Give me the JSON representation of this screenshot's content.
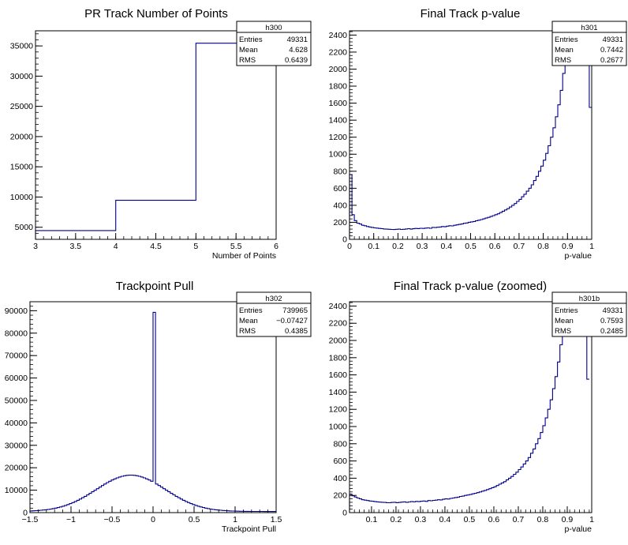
{
  "chart_data": [
    {
      "type": "histogram",
      "title": "PR Track Number of Points",
      "xlabel": "Number of Points",
      "ylabel": "",
      "xlim": [
        3,
        6
      ],
      "ylim": [
        3000,
        37500
      ],
      "xticks": [
        3,
        3.5,
        4,
        4.5,
        5,
        5.5,
        6
      ],
      "xtick_labels": [
        "3",
        "3.5",
        "4",
        "4.5",
        "5",
        "5.5",
        "6"
      ],
      "yticks": [
        5000,
        10000,
        15000,
        20000,
        25000,
        30000,
        35000
      ],
      "ytick_labels": [
        "5000",
        "10000",
        "15000",
        "20000",
        "25000",
        "30000",
        "35000"
      ],
      "bins": [
        {
          "x0": 3,
          "x1": 4,
          "y": 4450
        },
        {
          "x0": 4,
          "x1": 5,
          "y": 9450
        },
        {
          "x0": 5,
          "x1": 6,
          "y": 35450
        }
      ],
      "stats": {
        "name": "h300",
        "entries": "49331",
        "mean": "4.628",
        "rms": "0.6439"
      }
    },
    {
      "type": "histogram",
      "title": "Final Track p-value",
      "xlabel": "p-value",
      "ylabel": "",
      "xlim": [
        0,
        1
      ],
      "ylim": [
        0,
        2450
      ],
      "xticks": [
        0,
        0.1,
        0.2,
        0.3,
        0.4,
        0.5,
        0.6,
        0.7,
        0.8,
        0.9,
        1
      ],
      "xtick_labels": [
        "0",
        "0.1",
        "0.2",
        "0.3",
        "0.4",
        "0.5",
        "0.6",
        "0.7",
        "0.8",
        "0.9",
        "1"
      ],
      "yticks": [
        0,
        200,
        400,
        600,
        800,
        1000,
        1200,
        1400,
        1600,
        1800,
        2000,
        2200,
        2400
      ],
      "ytick_labels": [
        "0",
        "200",
        "400",
        "600",
        "800",
        "1000",
        "1200",
        "1400",
        "1600",
        "1800",
        "2000",
        "2200",
        "2400"
      ],
      "bin_width": 0.01,
      "values": [
        760,
        290,
        220,
        190,
        180,
        165,
        160,
        150,
        145,
        140,
        135,
        132,
        128,
        125,
        122,
        120,
        118,
        116,
        115,
        118,
        120,
        116,
        118,
        122,
        125,
        120,
        124,
        128,
        126,
        130,
        128,
        132,
        135,
        130,
        140,
        138,
        142,
        145,
        150,
        148,
        155,
        160,
        158,
        165,
        170,
        175,
        180,
        188,
        192,
        200,
        205,
        210,
        218,
        225,
        232,
        240,
        250,
        258,
        268,
        278,
        290,
        300,
        315,
        330,
        345,
        360,
        380,
        400,
        420,
        445,
        470,
        500,
        530,
        565,
        600,
        640,
        690,
        740,
        800,
        860,
        930,
        1010,
        1100,
        1200,
        1310,
        1440,
        1580,
        1750,
        1950,
        2200,
        2450,
        2450,
        2450,
        2450,
        2450,
        2450,
        2450,
        2450,
        2450,
        1550
      ],
      "stats": {
        "name": "h301",
        "entries": "49331",
        "mean": "0.7442",
        "rms": "0.2677"
      }
    },
    {
      "type": "histogram",
      "title": "Trackpoint Pull",
      "xlabel": "Trackpoint Pull",
      "ylabel": "",
      "xlim": [
        -1.5,
        1.5
      ],
      "ylim": [
        0,
        94000
      ],
      "xticks": [
        -1.5,
        -1,
        -0.5,
        0,
        0.5,
        1,
        1.5
      ],
      "xtick_labels": [
        "−1.5",
        "−1",
        "−0.5",
        "0",
        "0.5",
        "1",
        "1.5"
      ],
      "yticks": [
        0,
        10000,
        20000,
        30000,
        40000,
        50000,
        60000,
        70000,
        80000,
        90000
      ],
      "ytick_labels": [
        "0",
        "10000",
        "20000",
        "30000",
        "40000",
        "50000",
        "60000",
        "70000",
        "80000",
        "90000"
      ],
      "bin_width": 0.03,
      "center": -0.27,
      "sigma": 0.42,
      "peak": 16200,
      "spike": {
        "x0": 0,
        "x1": 0.03,
        "y": 89300
      },
      "stats": {
        "name": "h302",
        "entries": "739965",
        "mean": "−0.07427",
        "rms": "0.4385"
      }
    },
    {
      "type": "histogram",
      "title": "Final Track p-value (zoomed)",
      "xlabel": "p-value",
      "ylabel": "",
      "xlim": [
        0.01,
        1
      ],
      "ylim": [
        0,
        2450
      ],
      "xticks": [
        0.1,
        0.2,
        0.3,
        0.4,
        0.5,
        0.6,
        0.7,
        0.8,
        0.9,
        1
      ],
      "xtick_labels": [
        "0.1",
        "0.2",
        "0.3",
        "0.4",
        "0.5",
        "0.6",
        "0.7",
        "0.8",
        "0.9",
        "1"
      ],
      "yticks": [
        0,
        200,
        400,
        600,
        800,
        1000,
        1200,
        1400,
        1600,
        1800,
        2000,
        2200,
        2400
      ],
      "ytick_labels": [
        "0",
        "200",
        "400",
        "600",
        "800",
        "1000",
        "1200",
        "1400",
        "1600",
        "1800",
        "2000",
        "2200",
        "2400"
      ],
      "bin_width": 0.01,
      "values": [
        215,
        195,
        182,
        170,
        160,
        150,
        145,
        140,
        135,
        132,
        128,
        125,
        122,
        120,
        118,
        116,
        115,
        118,
        120,
        116,
        118,
        122,
        125,
        120,
        124,
        128,
        126,
        130,
        128,
        132,
        135,
        130,
        140,
        138,
        142,
        145,
        150,
        148,
        155,
        160,
        158,
        165,
        170,
        175,
        180,
        188,
        192,
        200,
        205,
        210,
        218,
        225,
        232,
        240,
        250,
        258,
        268,
        278,
        290,
        300,
        315,
        330,
        345,
        360,
        380,
        400,
        420,
        445,
        470,
        500,
        530,
        565,
        600,
        640,
        690,
        740,
        800,
        860,
        930,
        1010,
        1100,
        1200,
        1310,
        1440,
        1580,
        1750,
        1950,
        2200,
        2450,
        2450,
        2450,
        2450,
        2450,
        2450,
        2450,
        2450,
        2450,
        1550
      ],
      "stats": {
        "name": "h301b",
        "entries": "49331",
        "mean": "0.7593",
        "rms": "0.2485"
      }
    }
  ],
  "stat_labels": {
    "entries": "Entries",
    "mean": "Mean",
    "rms": "RMS"
  },
  "colors": {
    "line": "#00008b",
    "frame": "#000000",
    "background": "#ffffff"
  }
}
